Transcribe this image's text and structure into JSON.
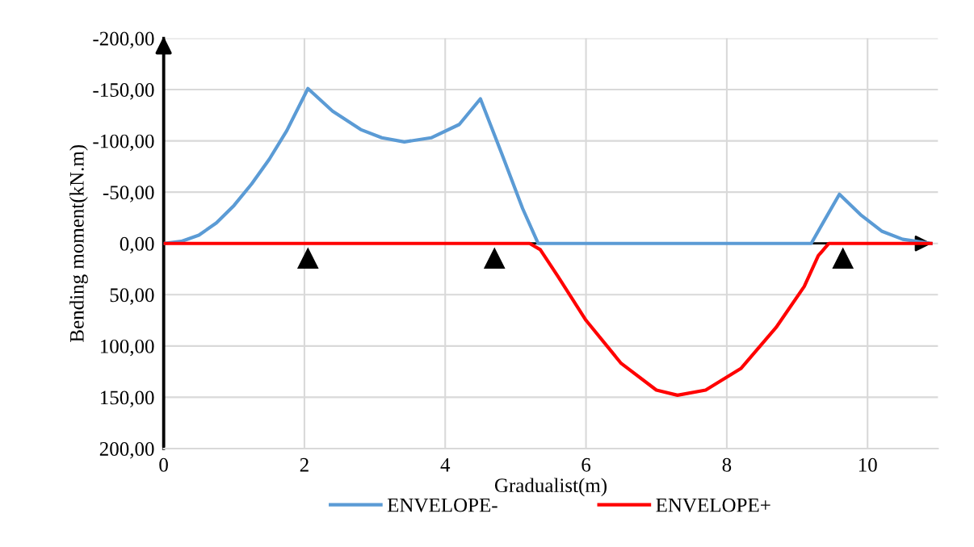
{
  "chart_data": {
    "type": "line",
    "xlabel": "Gradualist(m)",
    "ylabel": "Bending moment(kN.m)",
    "xlim": [
      0,
      11
    ],
    "xticks": [
      0,
      2,
      4,
      6,
      8,
      10
    ],
    "ylim": [
      200,
      -200
    ],
    "yticks": [
      {
        "value": -200,
        "label": "-200,00"
      },
      {
        "value": -150,
        "label": "-150,00"
      },
      {
        "value": -100,
        "label": "-100,00"
      },
      {
        "value": -50,
        "label": "-50,00"
      },
      {
        "value": 0,
        "label": "0,00"
      },
      {
        "value": 50,
        "label": "50,00"
      },
      {
        "value": 100,
        "label": "100,00"
      },
      {
        "value": 150,
        "label": "150,00"
      },
      {
        "value": 200,
        "label": "200,00"
      }
    ],
    "grid": true,
    "legend": "bottom",
    "marker": "none",
    "line_style": "solid",
    "series": [
      {
        "name": "ENVELOPE-",
        "color": "#5b9bd5",
        "x": [
          0,
          0.25,
          0.5,
          0.75,
          1,
          1.25,
          1.5,
          1.75,
          2.05,
          2.4,
          2.8,
          3.1,
          3.42,
          3.8,
          4.2,
          4.5,
          4.8,
          5.1,
          5.32,
          9.2,
          9.6,
          9.9,
          10.2,
          10.5,
          10.9
        ],
        "values": [
          0,
          -2,
          -8,
          -20,
          -37,
          -58,
          -82,
          -110,
          -151,
          -129,
          -111,
          -103,
          -99,
          -103,
          -116,
          -141,
          -88,
          -34,
          0,
          0,
          -48,
          -28,
          -12,
          -4,
          0
        ]
      },
      {
        "name": "ENVELOPE+",
        "color": "#ff0000",
        "x": [
          0,
          5.2,
          5.35,
          5.6,
          6,
          6.5,
          7,
          7.3,
          7.7,
          8.2,
          8.7,
          9.1,
          9.3,
          9.45,
          10.9
        ],
        "values": [
          0,
          0,
          6,
          32,
          75,
          117,
          143,
          148,
          143,
          122,
          82,
          42,
          12,
          0,
          0
        ]
      }
    ]
  }
}
